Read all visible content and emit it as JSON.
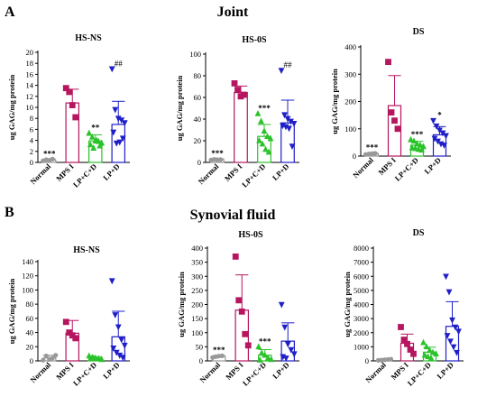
{
  "figure": {
    "sections": [
      {
        "letter": "A",
        "title": "Joint"
      },
      {
        "letter": "B",
        "title": "Synovial fluid"
      }
    ]
  },
  "chart_data": [
    {
      "type": "bar",
      "section": "A",
      "title": "HS-NS",
      "ylabel": "ug GAG/mg protein",
      "categories": [
        "Normal",
        "MPS I",
        "LP+C+D",
        "LP+D"
      ],
      "colors": [
        "#999999",
        "#b5165f",
        "#2bc22b",
        "#1f1fc8"
      ],
      "markers": [
        "circle",
        "square",
        "triangle-up",
        "triangle-down"
      ],
      "ylim": [
        0,
        20
      ],
      "yticks": [
        0,
        2,
        4,
        6,
        8,
        10,
        12,
        14,
        16,
        18,
        20
      ],
      "means": [
        0.4,
        10.8,
        3.9,
        6.9
      ],
      "sd": [
        0.2,
        2.5,
        1.1,
        4.2
      ],
      "points": [
        [
          0.3,
          0.5,
          0.4,
          0.6
        ],
        [
          13.5,
          12.8,
          10.4,
          8.2
        ],
        [
          5.3,
          4.6,
          3.9,
          3.8,
          3.5,
          3.2,
          2.6,
          4.0,
          3.0
        ],
        [
          17.0,
          9.6,
          8.0,
          7.7,
          7.2,
          5.5,
          3.5,
          3.7,
          4.4
        ]
      ],
      "annotations": [
        "***",
        "",
        "**",
        "##"
      ]
    },
    {
      "type": "bar",
      "section": "A",
      "title": "HS-0S",
      "ylabel": "ug GAG/mg protein",
      "categories": [
        "Normal",
        "MPS I",
        "LP+C+D",
        "LP+D"
      ],
      "colors": [
        "#999999",
        "#b5165f",
        "#2bc22b",
        "#1f1fc8"
      ],
      "markers": [
        "circle",
        "square",
        "triangle-up",
        "triangle-down"
      ],
      "ylim": [
        0,
        100
      ],
      "yticks": [
        0,
        20,
        40,
        60,
        80,
        100
      ],
      "means": [
        2.5,
        64.5,
        24.0,
        36.5
      ],
      "sd": [
        1.0,
        6.0,
        11.0,
        21.0
      ],
      "points": [
        [
          2.2,
          2.8,
          2.5,
          2.6
        ],
        [
          73.0,
          67.0,
          61.0,
          62.5
        ],
        [
          45.0,
          38.0,
          29.0,
          24.0,
          22.0,
          20.0,
          17.0,
          12.0,
          9.5
        ],
        [
          85.0,
          44.0,
          40.5,
          38.0,
          36.0,
          34.0,
          33.0,
          31.5,
          15.0
        ]
      ],
      "annotations": [
        "***",
        "",
        "***",
        "##"
      ]
    },
    {
      "type": "bar",
      "section": "A",
      "title": "DS",
      "ylabel": "ug GAG/mg protein",
      "categories": [
        "Normal",
        "MPS I",
        "LP+C+D",
        "LP+D"
      ],
      "colors": [
        "#999999",
        "#b5165f",
        "#2bc22b",
        "#1f1fc8"
      ],
      "markers": [
        "circle",
        "square",
        "triangle-up",
        "triangle-down"
      ],
      "ylim": [
        0,
        400
      ],
      "yticks": [
        0,
        100,
        200,
        300,
        400
      ],
      "means": [
        8,
        185,
        40,
        78
      ],
      "sd": [
        3,
        110,
        14,
        30
      ],
      "points": [
        [
          6,
          8,
          9,
          10
        ],
        [
          345,
          160,
          130,
          100
        ],
        [
          60,
          55,
          45,
          40,
          35,
          30,
          28,
          25,
          22
        ],
        [
          130,
          110,
          95,
          85,
          75,
          65,
          55,
          45,
          40
        ]
      ],
      "annotations": [
        "***",
        "",
        "***",
        "*"
      ]
    },
    {
      "type": "bar",
      "section": "B",
      "title": "HS-NS",
      "ylabel": "ug GAG/mg protein",
      "categories": [
        "Normal",
        "MPS I",
        "LP+C+D",
        "LP+D"
      ],
      "colors": [
        "#999999",
        "#b5165f",
        "#2bc22b",
        "#1f1fc8"
      ],
      "markers": [
        "circle",
        "square",
        "triangle-up",
        "triangle-down"
      ],
      "ylim": [
        0,
        140
      ],
      "yticks": [
        0,
        20,
        40,
        60,
        80,
        100,
        120,
        140
      ],
      "means": [
        4,
        39,
        4,
        34
      ],
      "sd": [
        4,
        18,
        2,
        36
      ],
      "points": [
        [
          1,
          7,
          2,
          4,
          8
        ],
        [
          55,
          40,
          36,
          32
        ],
        [
          7,
          5,
          4,
          3,
          2,
          3,
          4
        ],
        [
          113,
          65,
          48,
          30,
          22,
          18,
          12,
          8,
          5
        ]
      ],
      "annotations": [
        "",
        "",
        "",
        ""
      ]
    },
    {
      "type": "bar",
      "section": "B",
      "title": "HS-0S",
      "ylabel": "ug GAG/mg protein",
      "categories": [
        "Normal",
        "MPS I",
        "LP+C+D",
        "LP+D"
      ],
      "colors": [
        "#999999",
        "#b5165f",
        "#2bc22b",
        "#1f1fc8"
      ],
      "markers": [
        "circle",
        "square",
        "triangle-up",
        "triangle-down"
      ],
      "ylim": [
        0,
        400
      ],
      "yticks": [
        0,
        50,
        100,
        150,
        200,
        250,
        300,
        350,
        400
      ],
      "means": [
        15,
        180,
        20,
        70
      ],
      "sd": [
        4,
        125,
        20,
        65
      ],
      "points": [
        [
          12,
          15,
          17,
          18
        ],
        [
          370,
          215,
          175,
          95,
          55
        ],
        [
          50,
          28,
          20,
          10,
          5,
          3
        ],
        [
          200,
          120,
          60,
          40,
          25,
          15,
          10
        ]
      ],
      "annotations": [
        "***",
        "",
        "***",
        ""
      ]
    },
    {
      "type": "bar",
      "section": "B",
      "title": "DS",
      "ylabel": "ug GAG/mg protein",
      "categories": [
        "Normal",
        "MPS I",
        "LP+C+D",
        "LP+D"
      ],
      "colors": [
        "#999999",
        "#b5165f",
        "#2bc22b",
        "#1f1fc8"
      ],
      "markers": [
        "circle",
        "square",
        "triangle-up",
        "triangle-down"
      ],
      "ylim": [
        0,
        8000
      ],
      "yticks": [
        0,
        1000,
        2000,
        3000,
        4000,
        5000,
        6000,
        7000,
        8000
      ],
      "means": [
        80,
        1250,
        620,
        2450
      ],
      "sd": [
        40,
        650,
        350,
        1750
      ],
      "points": [
        [
          40,
          60,
          80,
          100,
          120
        ],
        [
          2400,
          1500,
          1200,
          800,
          500
        ],
        [
          1300,
          1000,
          750,
          600,
          500,
          400,
          300,
          200
        ],
        [
          6000,
          4900,
          2900,
          2400,
          2100,
          1800,
          1400,
          1000,
          600
        ]
      ],
      "annotations": [
        "",
        "",
        "",
        ""
      ]
    }
  ]
}
